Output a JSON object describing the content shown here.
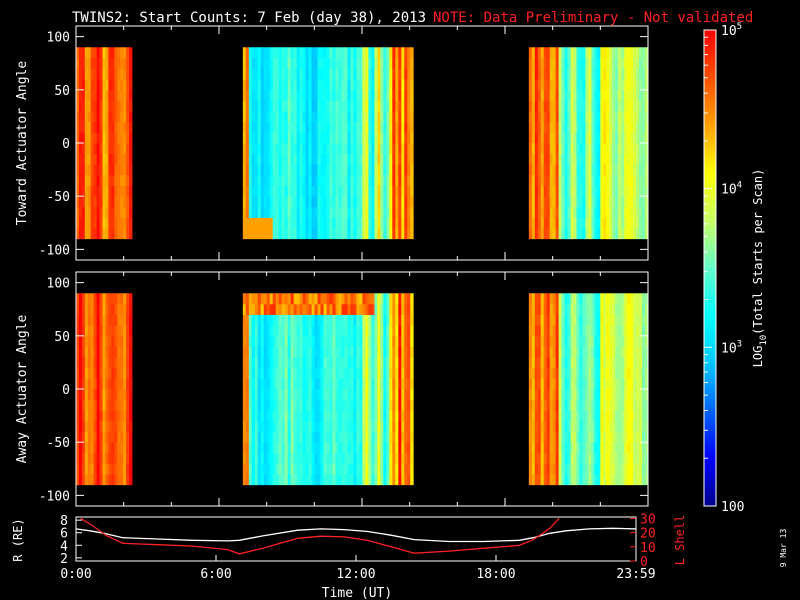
{
  "header": {
    "title": "TWINS2: Start Counts:  7 Feb (day  38), 2013",
    "note": "NOTE: Data Preliminary - Not validated"
  },
  "footer": {
    "date_stamp": "9 Mar 13"
  },
  "colors": {
    "background": "#000000",
    "axes": "#ffffff",
    "note": "#ff2020",
    "l_shell": "#ff2020",
    "r_line": "#ffffff"
  },
  "chart_data": [
    {
      "type": "heatmap",
      "panel": "top",
      "title": "",
      "xlabel": "",
      "ylabel": "Toward Actuator Angle",
      "xlim": [
        0,
        24
      ],
      "ylim": [
        -110,
        110
      ],
      "yticks": [
        -100,
        -50,
        0,
        50,
        100
      ],
      "data_angle_range": [
        -90,
        90
      ],
      "data_blocks": [
        {
          "start": 0.0,
          "end": 2.35
        },
        {
          "start": 7.0,
          "end": 14.15
        },
        {
          "start": 19.0,
          "end": 24.0
        }
      ],
      "grid": false
    },
    {
      "type": "heatmap",
      "panel": "middle",
      "title": "",
      "xlabel": "",
      "ylabel": "Away Actuator Angle",
      "xlim": [
        0,
        24
      ],
      "ylim": [
        -110,
        110
      ],
      "yticks": [
        -100,
        -50,
        0,
        50,
        100
      ],
      "data_angle_range": [
        -90,
        90
      ],
      "data_blocks": [
        {
          "start": 0.0,
          "end": 2.35
        },
        {
          "start": 7.0,
          "end": 14.15
        },
        {
          "start": 19.0,
          "end": 24.0
        }
      ],
      "grid": false
    },
    {
      "type": "line",
      "panel": "bottom",
      "title": "",
      "xlabel": "Time (UT)",
      "xticks": [
        "0:00",
        "6:00",
        "12:00",
        "18:00",
        "23:59"
      ],
      "xtick_values": [
        0,
        6,
        12,
        18,
        24
      ],
      "ylabel_left": "R (RE)",
      "ylabel_right": "L Shell",
      "ylim_left": [
        1.5,
        8.5
      ],
      "ylim_right": [
        0,
        31
      ],
      "yticks_left": [
        2,
        4,
        6,
        8
      ],
      "yticks_right": [
        0,
        10,
        20,
        30
      ],
      "series": [
        {
          "name": "R (RE)",
          "axis": "left",
          "x": [
            0,
            0.6,
            1.2,
            2.0,
            3.5,
            5.0,
            6.5,
            7.0,
            8.0,
            9.5,
            10.5,
            11.5,
            12.5,
            13.5,
            14.5,
            16.0,
            17.5,
            19.0,
            19.6,
            20.3,
            21.0,
            22.0,
            23.0,
            24.0
          ],
          "values": [
            6.6,
            6.3,
            5.9,
            5.2,
            5.0,
            4.8,
            4.7,
            4.8,
            5.5,
            6.4,
            6.6,
            6.5,
            6.2,
            5.6,
            4.9,
            4.6,
            4.6,
            4.8,
            5.2,
            5.9,
            6.3,
            6.6,
            6.7,
            6.6
          ]
        },
        {
          "name": "L Shell",
          "axis": "right",
          "x": [
            0.2,
            0.7,
            1.3,
            2.0,
            3.5,
            5.0,
            6.5,
            7.0,
            8.0,
            9.5,
            10.5,
            11.5,
            12.5,
            13.5,
            14.5,
            16.0,
            17.5,
            19.0,
            19.6,
            20.3,
            20.7
          ],
          "values": [
            30,
            25,
            18,
            12.5,
            11.5,
            10.5,
            8.0,
            5.0,
            9.0,
            16.0,
            17.5,
            17.0,
            14.5,
            10.0,
            5.5,
            7.0,
            9.0,
            11.0,
            15.0,
            23.0,
            30
          ]
        }
      ],
      "grid": false
    },
    {
      "type": "colorbar",
      "label": "LOG10(Total Starts per Scan)",
      "label_parts": [
        "LOG",
        "10",
        "(Total Starts per Scan)"
      ],
      "range": [
        100,
        100000
      ],
      "scale": "log",
      "ticks": [
        {
          "value": 100,
          "base": "100",
          "exp": ""
        },
        {
          "value": 1000,
          "base": "10",
          "exp": "3"
        },
        {
          "value": 10000,
          "base": "10",
          "exp": "4"
        },
        {
          "value": 100000,
          "base": "10",
          "exp": "5"
        }
      ],
      "colormap": [
        "#00008c",
        "#0000ff",
        "#0064ff",
        "#00c8ff",
        "#00ffff",
        "#64ffc8",
        "#c8ff64",
        "#ffff00",
        "#ffa000",
        "#ff5000",
        "#ff0000"
      ]
    }
  ]
}
